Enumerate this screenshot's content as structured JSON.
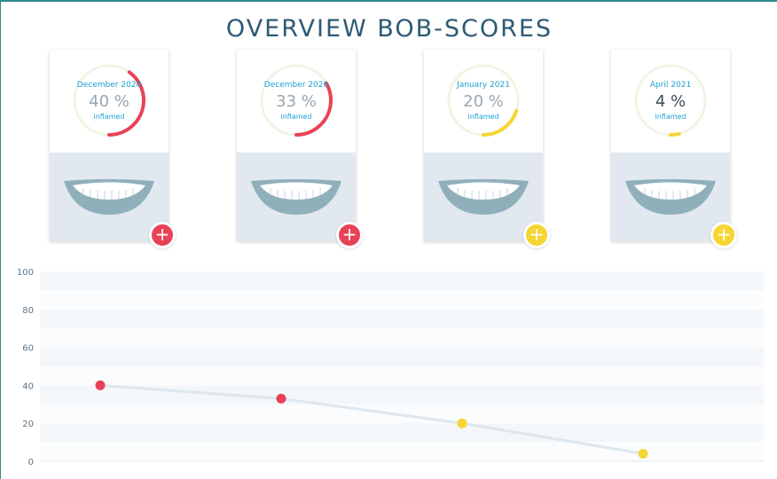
{
  "header": {
    "title": "OVERVIEW BOB-SCORES"
  },
  "cards": [
    {
      "date": "December 2020",
      "value": "40 %",
      "label": "inflamed",
      "percent": 40,
      "color": "#e84257",
      "button": "+"
    },
    {
      "date": "December 2020",
      "value": "33 %",
      "label": "inflamed",
      "percent": 33,
      "color": "#e84257",
      "button": "+"
    },
    {
      "date": "January 2021",
      "value": "20 %",
      "label": "inflamed",
      "percent": 20,
      "color": "#f6d534",
      "button": "+"
    },
    {
      "date": "April 2021",
      "value": "4 %",
      "label": "inflamed",
      "percent": 4,
      "color": "#f6d534",
      "button": "+"
    }
  ],
  "colors": {
    "danger": "#e84257",
    "warning": "#f6d534",
    "ring_track": "#eef5e2",
    "mouth_lips": "#8fb0bb",
    "line": "#dde7ee"
  },
  "chart_data": {
    "type": "line",
    "x": [
      "December 2020",
      "December 2020",
      "January 2021",
      "April 2021"
    ],
    "values": [
      40,
      33,
      20,
      4
    ],
    "point_colors": [
      "#e84257",
      "#e84257",
      "#f6d534",
      "#f6d534"
    ],
    "ylim": [
      0,
      100
    ],
    "yticks": [
      "0",
      "20",
      "40",
      "60",
      "80",
      "100"
    ],
    "grid": true
  }
}
